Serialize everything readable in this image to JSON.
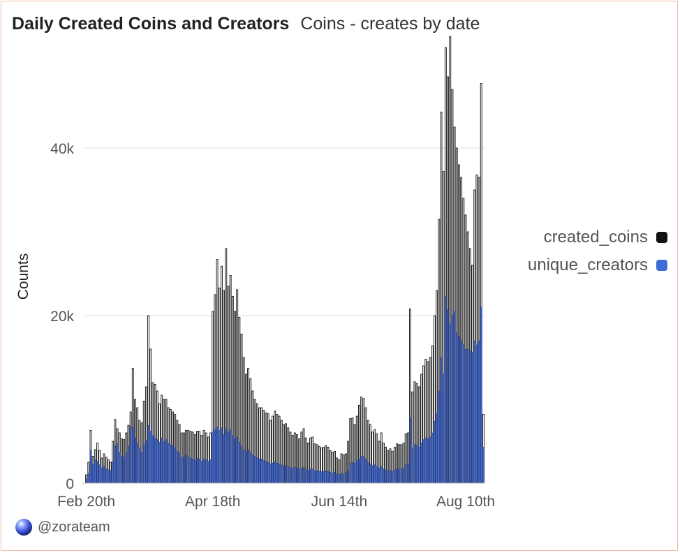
{
  "header": {
    "title": "Daily Created Coins and Creators",
    "subtitle": "Coins - creates by date"
  },
  "footer": {
    "handle": "@zorateam",
    "avatar_icon": "zora-orb-icon"
  },
  "colors": {
    "created_coins": "#111111",
    "unique_creators": "#3f6bd8",
    "grid": "#dddddd",
    "frame": "#f0b8aa"
  },
  "chart_data": {
    "type": "bar",
    "title": "Daily Created Coins and Creators",
    "subtitle": "Coins - creates by date",
    "xlabel": "",
    "ylabel": "Counts",
    "ylim": [
      0,
      55000
    ],
    "yticks": [
      0,
      20000,
      40000
    ],
    "ytick_labels": [
      "0",
      "20k",
      "40k"
    ],
    "grid": true,
    "legend_position": "right",
    "xtick_labels": [
      "Feb 20th",
      "Apr 18th",
      "Jun 14th",
      "Aug 10th"
    ],
    "xtick_indices": [
      0,
      57,
      114,
      171
    ],
    "overlay": true,
    "series": [
      {
        "name": "created_coins",
        "color": "#111111",
        "values": [
          1000,
          2500,
          6300,
          3200,
          4000,
          4800,
          3900,
          3000,
          3500,
          3100,
          2800,
          2500,
          5000,
          7600,
          6500,
          6000,
          5300,
          5200,
          6000,
          6900,
          8500,
          13700,
          10000,
          9000,
          7500,
          7200,
          9800,
          11500,
          20000,
          16000,
          12000,
          11800,
          11000,
          9500,
          10500,
          10000,
          10000,
          9000,
          8800,
          8500,
          8200,
          7500,
          7000,
          6000,
          6000,
          6300,
          6300,
          6200,
          6100,
          5800,
          6200,
          6200,
          5700,
          6300,
          6000,
          5500,
          6000,
          20500,
          22500,
          26700,
          23300,
          25900,
          23000,
          28000,
          23500,
          24800,
          22300,
          20500,
          23100,
          19800,
          17800,
          15000,
          13000,
          13700,
          12500,
          11000,
          10000,
          9500,
          9000,
          9000,
          8700,
          8400,
          8300,
          7500,
          8000,
          8600,
          8200,
          8000,
          7500,
          7000,
          7100,
          6600,
          6100,
          5700,
          6000,
          5800,
          5300,
          6100,
          6500,
          5400,
          4800,
          5400,
          5500,
          4700,
          4600,
          4400,
          4200,
          4300,
          4500,
          4300,
          3900,
          3700,
          3800,
          3000,
          2800,
          3500,
          3400,
          3500,
          5000,
          7700,
          7800,
          7000,
          8000,
          9300,
          10300,
          10100,
          9000,
          7500,
          7000,
          6100,
          6400,
          5900,
          5000,
          6000,
          4800,
          4300,
          3900,
          4100,
          3800,
          4300,
          4700,
          4600,
          4600,
          4800,
          5900,
          6000,
          20800,
          10900,
          12100,
          11900,
          11500,
          13000,
          14000,
          14800,
          14500,
          15000,
          16400,
          20000,
          23000,
          31500,
          44300,
          37200,
          52000,
          48500,
          53300,
          47000,
          42500,
          40000,
          38000,
          36500,
          34000,
          32000,
          30000,
          28000,
          26000,
          35000,
          36800,
          36500,
          47700,
          8200
        ]
      },
      {
        "name": "unique_creators",
        "color": "#3f6bd8",
        "values": [
          500,
          1200,
          3900,
          2200,
          2800,
          2600,
          2200,
          1800,
          2000,
          1700,
          1600,
          1500,
          2600,
          4400,
          4700,
          3700,
          3200,
          3100,
          3600,
          4400,
          6800,
          6600,
          5400,
          4800,
          4200,
          3700,
          4600,
          5100,
          6900,
          6200,
          5700,
          5400,
          5200,
          4900,
          5400,
          5000,
          5200,
          4800,
          4600,
          4500,
          4200,
          3800,
          3600,
          3100,
          3100,
          3300,
          3200,
          3000,
          2900,
          2700,
          3000,
          2900,
          2600,
          2900,
          2800,
          2600,
          2800,
          6100,
          6400,
          6700,
          6300,
          6600,
          5800,
          6500,
          6100,
          6400,
          5700,
          5300,
          5500,
          4900,
          4400,
          4000,
          3800,
          4000,
          3700,
          3400,
          3200,
          3000,
          2900,
          2900,
          2700,
          2600,
          2500,
          2300,
          2400,
          2500,
          2400,
          2300,
          2200,
          2100,
          2100,
          2000,
          1900,
          1800,
          1900,
          1800,
          1700,
          1800,
          1900,
          1700,
          1500,
          1700,
          1700,
          1500,
          1500,
          1400,
          1400,
          1400,
          1500,
          1400,
          1300,
          1200,
          1300,
          1100,
          1000,
          1200,
          1100,
          1200,
          1500,
          2400,
          2500,
          2400,
          2700,
          2900,
          3200,
          3200,
          2900,
          2500,
          2300,
          2100,
          2200,
          2000,
          1800,
          2000,
          1700,
          1600,
          1500,
          1500,
          1400,
          1600,
          1700,
          1700,
          1700,
          1800,
          2200,
          2300,
          7800,
          4200,
          4600,
          4500,
          4300,
          4800,
          5200,
          5400,
          5300,
          5500,
          6000,
          7400,
          8300,
          11000,
          15000,
          13000,
          22300,
          20700,
          19000,
          20000,
          20500,
          18000,
          17500,
          17000,
          16500,
          16000,
          16000,
          15800,
          15600,
          17000,
          16500,
          17000,
          21000,
          4300
        ]
      }
    ]
  }
}
